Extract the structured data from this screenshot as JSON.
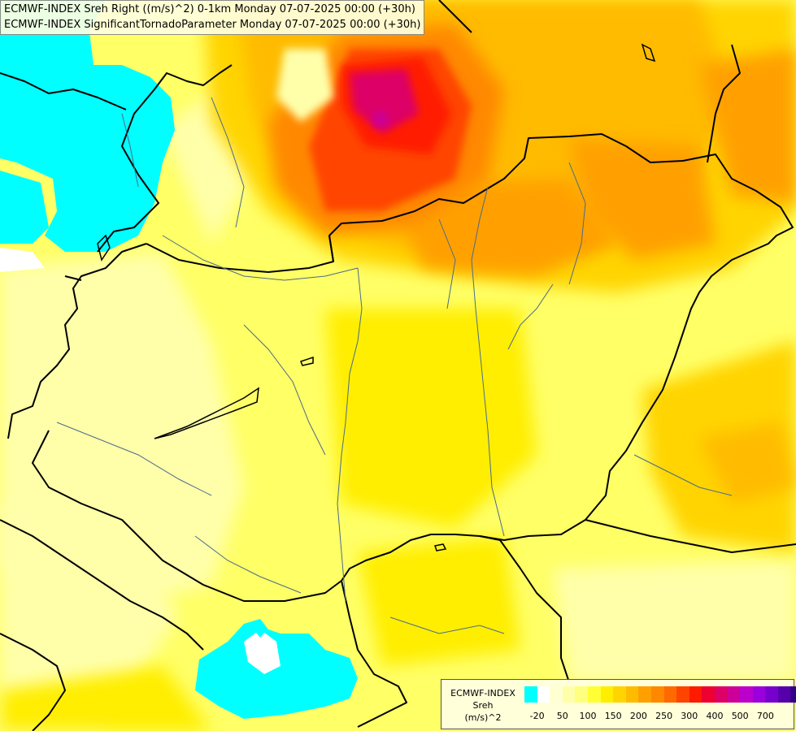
{
  "header": {
    "line1": "ECMWF-INDEX Sreh Right ((m/s)^2) 0-1km Monday 07-07-2025 00:00 (+30h)",
    "line2": "ECMWF-INDEX SignificantTornadoParameter Monday 07-07-2025 00:00 (+30h)"
  },
  "legend": {
    "name_lines": [
      "ECMWF-INDEX",
      "Sreh",
      "(m/s)^2"
    ],
    "colors": [
      "#00ffff",
      "#ffffff",
      "#ffffd4",
      "#ffffaa",
      "#ffff80",
      "#ffff33",
      "#ffee00",
      "#ffd400",
      "#ffbb00",
      "#ffa000",
      "#ff8800",
      "#ff6a00",
      "#ff4400",
      "#ff1a00",
      "#ee0033",
      "#dd0066",
      "#cc0099",
      "#bb00cc",
      "#9900dd",
      "#7700cc",
      "#5500aa",
      "#330088",
      "#110066"
    ],
    "ticks": [
      "-20",
      "50",
      "100",
      "150",
      "200",
      "250",
      "300",
      "400",
      "500",
      "700"
    ]
  },
  "colors": {
    "cyan_region": "#00ffff",
    "border_line": "#000000",
    "river_line": "#4a6a8a"
  }
}
